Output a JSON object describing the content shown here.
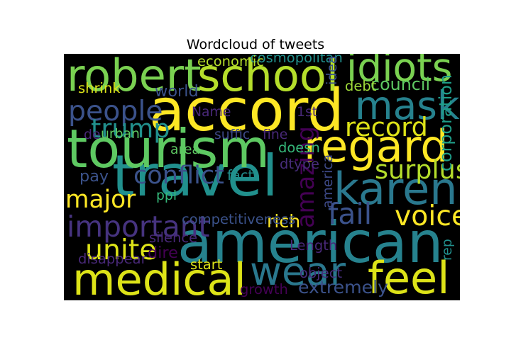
{
  "chart_data": {
    "type": "wordcloud",
    "title": "Wordcloud of tweets",
    "background": "#000000",
    "colormap": "viridis",
    "words": [
      {
        "text": "accord",
        "weight": 1.0,
        "color": "#fde725",
        "orient": "h"
      },
      {
        "text": "travel",
        "weight": 0.98,
        "color": "#21908d",
        "orient": "h"
      },
      {
        "text": "american",
        "weight": 0.97,
        "color": "#26828e",
        "orient": "h"
      },
      {
        "text": "tourism",
        "weight": 0.9,
        "color": "#5ec962",
        "orient": "h"
      },
      {
        "text": "robert",
        "weight": 0.72,
        "color": "#7ad151",
        "orient": "h"
      },
      {
        "text": "school",
        "weight": 0.72,
        "color": "#b5de2b",
        "orient": "h"
      },
      {
        "text": "regard",
        "weight": 0.72,
        "color": "#fde725",
        "orient": "h"
      },
      {
        "text": "karen",
        "weight": 0.72,
        "color": "#2a788e",
        "orient": "h"
      },
      {
        "text": "medical",
        "weight": 0.72,
        "color": "#dde318",
        "orient": "h"
      },
      {
        "text": "feel",
        "weight": 0.72,
        "color": "#dde318",
        "orient": "h"
      },
      {
        "text": "idiots",
        "weight": 0.62,
        "color": "#7ad151",
        "orient": "h"
      },
      {
        "text": "mask",
        "weight": 0.62,
        "color": "#26828e",
        "orient": "h"
      },
      {
        "text": "wear",
        "weight": 0.62,
        "color": "#2a788e",
        "orient": "h"
      },
      {
        "text": "people",
        "weight": 0.4,
        "color": "#3b528b",
        "orient": "h"
      },
      {
        "text": "trump",
        "weight": 0.36,
        "color": "#21908d",
        "orient": "h"
      },
      {
        "text": "record",
        "weight": 0.36,
        "color": "#dde318",
        "orient": "h"
      },
      {
        "text": "surplus",
        "weight": 0.36,
        "color": "#b5de2b",
        "orient": "h"
      },
      {
        "text": "conflict",
        "weight": 0.34,
        "color": "#3b528b",
        "orient": "h"
      },
      {
        "text": "major",
        "weight": 0.33,
        "color": "#fde725",
        "orient": "h"
      },
      {
        "text": "important",
        "weight": 0.42,
        "color": "#46337f",
        "orient": "h"
      },
      {
        "text": "fail",
        "weight": 0.42,
        "color": "#3b528b",
        "orient": "h"
      },
      {
        "text": "voice",
        "weight": 0.4,
        "color": "#fde725",
        "orient": "h"
      },
      {
        "text": "unite",
        "weight": 0.4,
        "color": "#dde318",
        "orient": "h"
      },
      {
        "text": "amazing",
        "weight": 0.32,
        "color": "#440154",
        "orient": "v"
      },
      {
        "text": "rich",
        "weight": 0.2,
        "color": "#fde725",
        "orient": "h"
      },
      {
        "text": "extremely",
        "weight": 0.2,
        "color": "#3b528b",
        "orient": "h"
      },
      {
        "text": "corporation",
        "weight": 0.18,
        "color": "#1f9e89",
        "orient": "v"
      },
      {
        "text": "council",
        "weight": 0.18,
        "color": "#5ec962",
        "orient": "h"
      },
      {
        "text": "world",
        "weight": 0.16,
        "color": "#3b528b",
        "orient": "h"
      },
      {
        "text": "pay",
        "weight": 0.16,
        "color": "#3b528b",
        "orient": "h"
      },
      {
        "text": "dire",
        "weight": 0.16,
        "color": "#440154",
        "orient": "h"
      },
      {
        "text": "cosmopolitan",
        "weight": 0.12,
        "color": "#21908d",
        "orient": "h"
      },
      {
        "text": "economic",
        "weight": 0.12,
        "color": "#b5de2b",
        "orient": "h"
      },
      {
        "text": "ideal",
        "weight": 0.12,
        "color": "#3b528b",
        "orient": "v"
      },
      {
        "text": "debt",
        "weight": 0.12,
        "color": "#9fda3a",
        "orient": "h"
      },
      {
        "text": "shrink",
        "weight": 0.12,
        "color": "#dde318",
        "orient": "h"
      },
      {
        "text": "Name",
        "weight": 0.11,
        "color": "#482878",
        "orient": "h"
      },
      {
        "text": "1st",
        "weight": 0.11,
        "color": "#482878",
        "orient": "h"
      },
      {
        "text": "suffic",
        "weight": 0.11,
        "color": "#3e4a89",
        "orient": "h"
      },
      {
        "text": "fine",
        "weight": 0.11,
        "color": "#482878",
        "orient": "h"
      },
      {
        "text": "urban",
        "weight": 0.11,
        "color": "#5ec962",
        "orient": "h"
      },
      {
        "text": "de",
        "weight": 0.11,
        "color": "#482878",
        "orient": "h"
      },
      {
        "text": "doesn",
        "weight": 0.12,
        "color": "#35b779",
        "orient": "h"
      },
      {
        "text": "area",
        "weight": 0.11,
        "color": "#5ec962",
        "orient": "h"
      },
      {
        "text": "dtype",
        "weight": 0.12,
        "color": "#472d7b",
        "orient": "h"
      },
      {
        "text": "fact",
        "weight": 0.12,
        "color": "#21908d",
        "orient": "h"
      },
      {
        "text": "america",
        "weight": 0.11,
        "color": "#3e4a89",
        "orient": "v"
      },
      {
        "text": "ppl",
        "weight": 0.11,
        "color": "#35b779",
        "orient": "h"
      },
      {
        "text": "competitiveness",
        "weight": 0.12,
        "color": "#3b528b",
        "orient": "h"
      },
      {
        "text": "silence",
        "weight": 0.12,
        "color": "#482878",
        "orient": "h"
      },
      {
        "text": "Length",
        "weight": 0.12,
        "color": "#482878",
        "orient": "h"
      },
      {
        "text": "rep",
        "weight": 0.11,
        "color": "#21908d",
        "orient": "v"
      },
      {
        "text": "disappear",
        "weight": 0.12,
        "color": "#482878",
        "orient": "h"
      },
      {
        "text": "start",
        "weight": 0.12,
        "color": "#dde318",
        "orient": "h"
      },
      {
        "text": "object",
        "weight": 0.12,
        "color": "#472d7b",
        "orient": "h"
      },
      {
        "text": "growth",
        "weight": 0.12,
        "color": "#440154",
        "orient": "h"
      }
    ]
  }
}
